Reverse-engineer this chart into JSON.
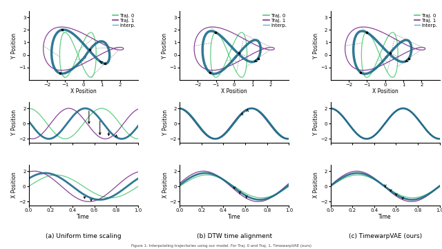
{
  "traj0_color": "#50C878",
  "traj1_color": "#7B2D8B",
  "interp_color": "#4BB8C8",
  "interp_thick_color": "#1a6b8a",
  "arrow_color": "#111111",
  "col_titles": [
    "(a) Uniform time scaling",
    "(b) DTW time alignment",
    "(c) TimewarpVAE (ours)"
  ],
  "legend_labels": [
    "Traj. 0",
    "Traj. 1",
    "Interp."
  ],
  "fig_width": 6.4,
  "fig_height": 3.61
}
